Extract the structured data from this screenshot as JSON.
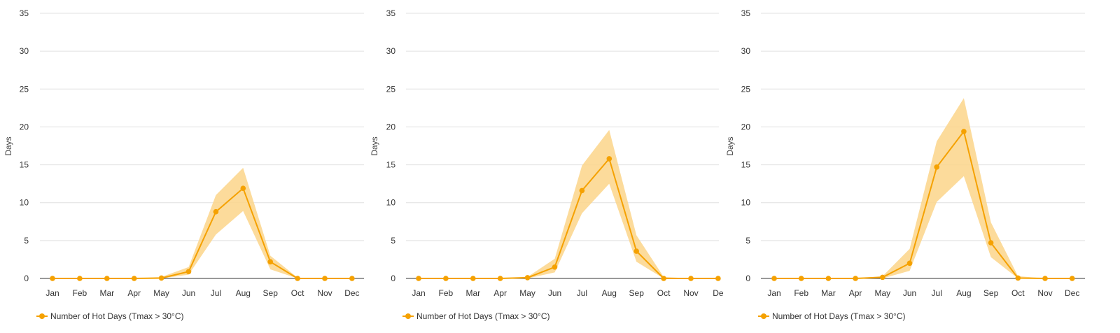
{
  "colors": {
    "line": "#f5a100",
    "band": "#fbd58a",
    "grid": "#e0e0e0",
    "axis": "#333333"
  },
  "chart_data": [
    {
      "type": "line",
      "ylabel": "Days",
      "xlabel": "",
      "title": "",
      "ylim": [
        0,
        35
      ],
      "yticks": [
        "0",
        "5",
        "10",
        "15",
        "20",
        "25",
        "30",
        "35"
      ],
      "categories": [
        "Jan",
        "Feb",
        "Mar",
        "Apr",
        "May",
        "Jun",
        "Jul",
        "Aug",
        "Sep",
        "Oct",
        "Nov",
        "Dec"
      ],
      "series": [
        {
          "name": "Number of Hot Days (Tmax > 30°C)",
          "values": [
            0,
            0,
            0,
            0,
            0.05,
            0.9,
            8.8,
            11.9,
            2.2,
            0,
            0,
            0
          ],
          "lower": [
            0,
            0,
            0,
            0,
            0,
            0.5,
            5.8,
            8.9,
            1.2,
            0,
            0,
            0
          ],
          "upper": [
            0,
            0,
            0,
            0,
            0.2,
            1.5,
            11.0,
            14.6,
            3.0,
            0.1,
            0,
            0
          ]
        }
      ],
      "legend": "bottom-left",
      "grid": true
    },
    {
      "type": "line",
      "ylabel": "Days",
      "xlabel": "",
      "title": "",
      "ylim": [
        0,
        35
      ],
      "yticks": [
        "0",
        "5",
        "10",
        "15",
        "20",
        "25",
        "30",
        "35"
      ],
      "categories": [
        "Jan",
        "Feb",
        "Mar",
        "Apr",
        "May",
        "Jun",
        "Jul",
        "Aug",
        "Sep",
        "Oct",
        "Nov",
        "De"
      ],
      "series": [
        {
          "name": "Number of Hot Days (Tmax > 30°C)",
          "values": [
            0,
            0,
            0,
            0,
            0.1,
            1.5,
            11.6,
            15.8,
            3.6,
            0,
            0,
            0
          ],
          "lower": [
            0,
            0,
            0,
            0,
            0,
            0.8,
            8.6,
            12.5,
            2.2,
            0,
            0,
            0
          ],
          "upper": [
            0,
            0,
            0,
            0,
            0.2,
            2.6,
            14.9,
            19.6,
            5.7,
            0.2,
            0,
            0
          ]
        }
      ],
      "legend": "bottom-left",
      "grid": true
    },
    {
      "type": "line",
      "ylabel": "Days",
      "xlabel": "",
      "title": "",
      "ylim": [
        0,
        35
      ],
      "yticks": [
        "0",
        "5",
        "10",
        "15",
        "20",
        "25",
        "30",
        "35"
      ],
      "categories": [
        "Jan",
        "Feb",
        "Mar",
        "Apr",
        "May",
        "Jun",
        "Jul",
        "Aug",
        "Sep",
        "Oct",
        "Nov",
        "Dec"
      ],
      "series": [
        {
          "name": "Number of Hot Days (Tmax > 30°C)",
          "values": [
            0,
            0,
            0,
            0,
            0.15,
            2.0,
            14.7,
            19.4,
            4.7,
            0.05,
            0,
            0
          ],
          "lower": [
            0,
            0,
            0,
            0,
            0,
            1.0,
            10.1,
            13.5,
            2.8,
            0,
            0,
            0
          ],
          "upper": [
            0,
            0,
            0,
            0,
            0.3,
            3.9,
            18.1,
            23.8,
            7.4,
            0.3,
            0,
            0
          ]
        }
      ],
      "legend": "bottom-left",
      "grid": true
    }
  ]
}
